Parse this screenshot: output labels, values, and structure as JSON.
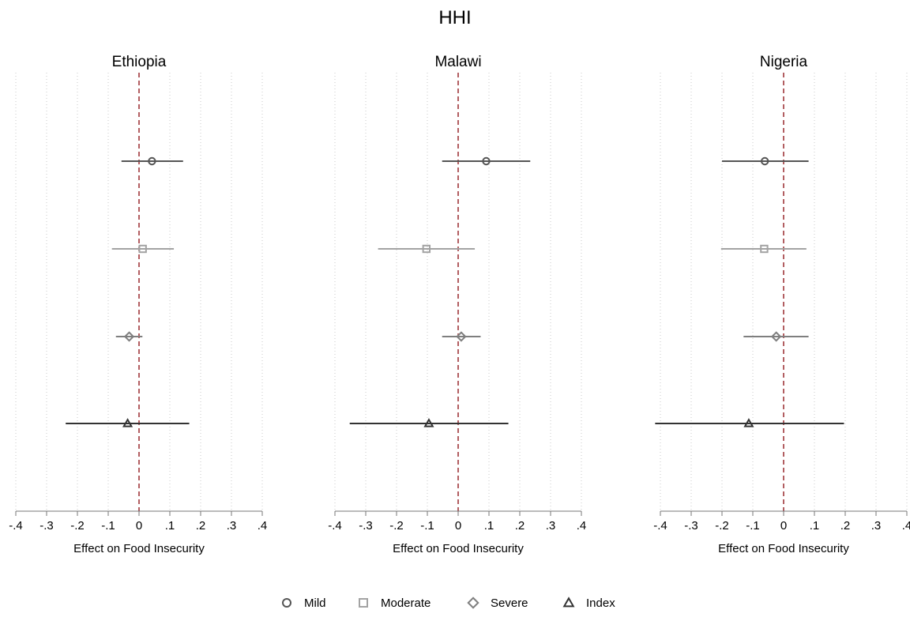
{
  "chart_data": {
    "type": "scatter",
    "subtype": "coefficient-plot",
    "title": "HHI",
    "xlabel": "Effect on Food Insecurity",
    "xlim": [
      -0.4,
      0.4
    ],
    "x_ticks": [
      -0.4,
      -0.3,
      -0.2,
      -0.1,
      0,
      0.1,
      0.2,
      0.3,
      0.4
    ],
    "x_tick_labels": [
      "-.4",
      "-.3",
      "-.2",
      "-.1",
      "0",
      ".1",
      ".2",
      ".3",
      ".4"
    ],
    "reference_line": 0,
    "grid": "vertical dotted",
    "legend_position": "bottom",
    "series_styles": {
      "Mild": {
        "marker": "circle",
        "color": "#555555"
      },
      "Moderate": {
        "marker": "square",
        "color": "#a3a3a3"
      },
      "Severe": {
        "marker": "diamond",
        "color": "#7f7f7f"
      },
      "Index": {
        "marker": "triangle",
        "color": "#333333"
      }
    },
    "reference_line_color": "#a0363a",
    "panels": [
      {
        "title": "Ethiopia",
        "series": [
          {
            "name": "Mild",
            "estimate": 0.042,
            "ci": [
              -0.057,
              0.143
            ]
          },
          {
            "name": "Moderate",
            "estimate": 0.012,
            "ci": [
              -0.088,
              0.113
            ]
          },
          {
            "name": "Severe",
            "estimate": -0.032,
            "ci": [
              -0.075,
              0.011
            ]
          },
          {
            "name": "Index",
            "estimate": -0.037,
            "ci": [
              -0.238,
              0.163
            ]
          }
        ]
      },
      {
        "title": "Malawi",
        "series": [
          {
            "name": "Mild",
            "estimate": 0.091,
            "ci": [
              -0.052,
              0.234
            ]
          },
          {
            "name": "Moderate",
            "estimate": -0.103,
            "ci": [
              -0.26,
              0.054
            ]
          },
          {
            "name": "Severe",
            "estimate": 0.01,
            "ci": [
              -0.052,
              0.073
            ]
          },
          {
            "name": "Index",
            "estimate": -0.095,
            "ci": [
              -0.352,
              0.163
            ]
          }
        ]
      },
      {
        "title": "Nigeria",
        "series": [
          {
            "name": "Mild",
            "estimate": -0.061,
            "ci": [
              -0.2,
              0.081
            ]
          },
          {
            "name": "Moderate",
            "estimate": -0.063,
            "ci": [
              -0.203,
              0.074
            ]
          },
          {
            "name": "Severe",
            "estimate": -0.024,
            "ci": [
              -0.13,
              0.081
            ]
          },
          {
            "name": "Index",
            "estimate": -0.113,
            "ci": [
              -0.417,
              0.196
            ]
          }
        ]
      }
    ]
  },
  "legend": {
    "items": [
      {
        "label": "Mild",
        "icon": "circle-marker-icon"
      },
      {
        "label": "Moderate",
        "icon": "square-marker-icon"
      },
      {
        "label": "Severe",
        "icon": "diamond-marker-icon"
      },
      {
        "label": "Index",
        "icon": "triangle-marker-icon"
      }
    ]
  }
}
